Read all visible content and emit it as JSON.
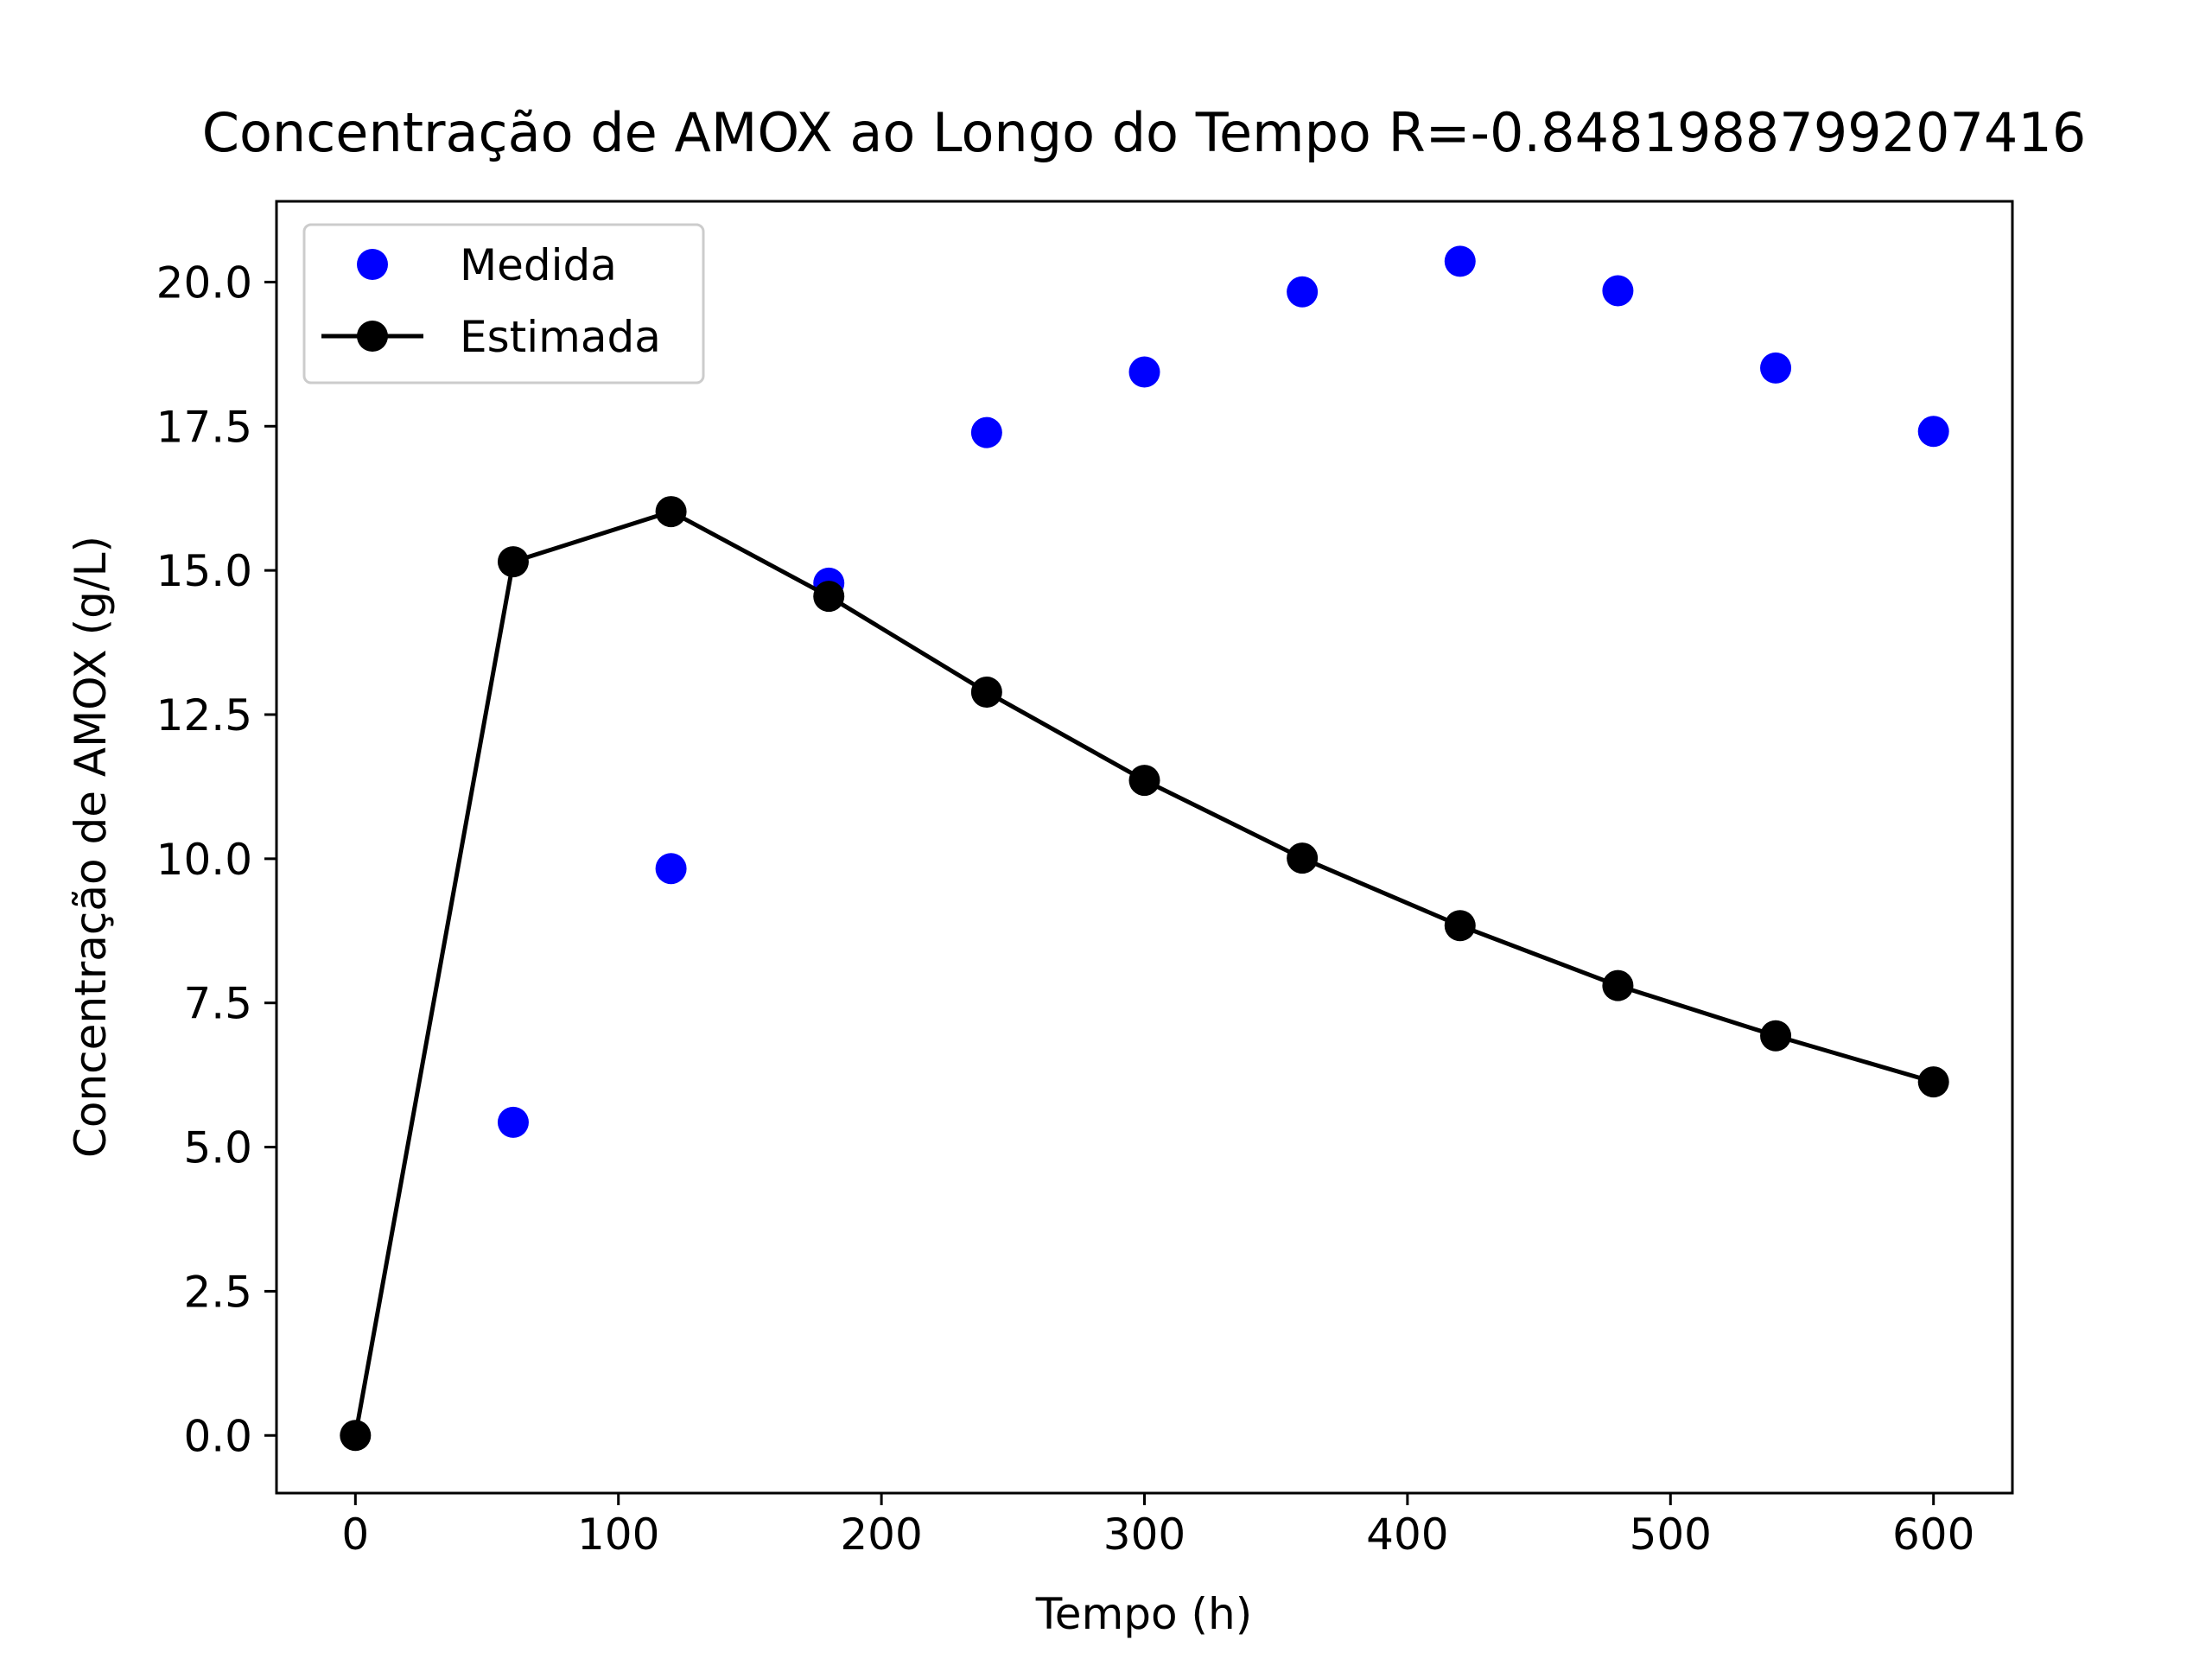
{
  "chart_data": {
    "type": "scatter",
    "title": "Concentração de AMOX ao Longo do Tempo R=-0.8481988799207416",
    "xlabel": "Tempo (h)",
    "ylabel": "Concentração de AMOX (g/L)",
    "xlim": [
      -30,
      630
    ],
    "ylim": [
      -1,
      21.4
    ],
    "xticks": [
      0,
      100,
      200,
      300,
      400,
      500,
      600
    ],
    "xtick_labels": [
      "0",
      "100",
      "200",
      "300",
      "400",
      "500",
      "600"
    ],
    "yticks": [
      0,
      2.5,
      5,
      7.5,
      10,
      12.5,
      15,
      17.5,
      20
    ],
    "ytick_labels": [
      "0.0",
      "2.5",
      "5.0",
      "7.5",
      "10.0",
      "12.5",
      "15.0",
      "17.5",
      "20.0"
    ],
    "grid": false,
    "legend_position": "top-left",
    "series": [
      {
        "name": "Medida",
        "style": "markers",
        "color": "#0000ff",
        "x": [
          60,
          120,
          180,
          240,
          300,
          360,
          420,
          480,
          540,
          600
        ],
        "y": [
          5.43,
          9.83,
          14.78,
          17.39,
          18.44,
          19.83,
          20.36,
          19.85,
          18.51,
          17.41
        ]
      },
      {
        "name": "Estimada",
        "style": "line-markers",
        "color": "#000000",
        "x": [
          0,
          60,
          120,
          180,
          240,
          300,
          360,
          420,
          480,
          540,
          600
        ],
        "y": [
          0,
          15.15,
          16.02,
          14.55,
          12.89,
          11.36,
          10.01,
          8.84,
          7.8,
          6.93,
          6.13
        ]
      }
    ]
  }
}
